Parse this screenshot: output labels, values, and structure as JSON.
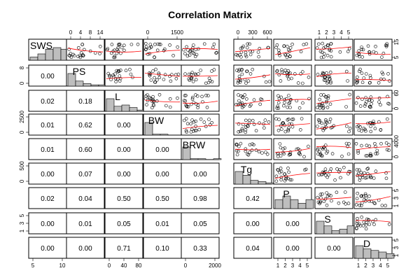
{
  "chart_data": {
    "type": "scatter",
    "title": "Correlation Matrix",
    "variables": [
      "SWS",
      "PS",
      "L",
      "BW",
      "BRW",
      "Tg",
      "P",
      "S",
      "D"
    ],
    "p_values": [
      {
        "row": "PS",
        "col": "SWS",
        "value": "0.00"
      },
      {
        "row": "L",
        "col": "SWS",
        "value": "0.02"
      },
      {
        "row": "L",
        "col": "PS",
        "value": "0.18"
      },
      {
        "row": "BW",
        "col": "SWS",
        "value": "0.01"
      },
      {
        "row": "BW",
        "col": "PS",
        "value": "0.62"
      },
      {
        "row": "BW",
        "col": "L",
        "value": "0.00"
      },
      {
        "row": "BRW",
        "col": "SWS",
        "value": "0.01"
      },
      {
        "row": "BRW",
        "col": "PS",
        "value": "0.60"
      },
      {
        "row": "BRW",
        "col": "L",
        "value": "0.00"
      },
      {
        "row": "BRW",
        "col": "BW",
        "value": "0.00"
      },
      {
        "row": "Tg",
        "col": "SWS",
        "value": "0.00"
      },
      {
        "row": "Tg",
        "col": "PS",
        "value": "0.07"
      },
      {
        "row": "Tg",
        "col": "L",
        "value": "0.00"
      },
      {
        "row": "Tg",
        "col": "BW",
        "value": "0.00"
      },
      {
        "row": "Tg",
        "col": "BRW",
        "value": "0.00"
      },
      {
        "row": "P",
        "col": "SWS",
        "value": "0.02"
      },
      {
        "row": "P",
        "col": "PS",
        "value": "0.04"
      },
      {
        "row": "P",
        "col": "L",
        "value": "0.50"
      },
      {
        "row": "P",
        "col": "BW",
        "value": "0.50"
      },
      {
        "row": "P",
        "col": "BRW",
        "value": "0.98"
      },
      {
        "row": "P",
        "col": "Tg",
        "value": "0.42"
      },
      {
        "row": "S",
        "col": "SWS",
        "value": "0.00"
      },
      {
        "row": "S",
        "col": "PS",
        "value": "0.01"
      },
      {
        "row": "S",
        "col": "L",
        "value": "0.05"
      },
      {
        "row": "S",
        "col": "BW",
        "value": "0.01"
      },
      {
        "row": "S",
        "col": "BRW",
        "value": "0.05"
      },
      {
        "row": "S",
        "col": "Tg",
        "value": "0.00"
      },
      {
        "row": "S",
        "col": "P",
        "value": "0.00"
      },
      {
        "row": "D",
        "col": "SWS",
        "value": "0.00"
      },
      {
        "row": "D",
        "col": "PS",
        "value": "0.00"
      },
      {
        "row": "D",
        "col": "L",
        "value": "0.71"
      },
      {
        "row": "D",
        "col": "BW",
        "value": "0.10"
      },
      {
        "row": "D",
        "col": "BRW",
        "value": "0.33"
      },
      {
        "row": "D",
        "col": "Tg",
        "value": "0.04"
      },
      {
        "row": "D",
        "col": "P",
        "value": "0.00"
      },
      {
        "row": "D",
        "col": "S",
        "value": "0.00"
      }
    ],
    "axis_ticks": {
      "top": [
        {
          "col": "PS",
          "labels": [
            "0",
            "4",
            "8",
            "14"
          ]
        },
        {
          "col": "BW",
          "labels": [
            "0",
            "1500"
          ]
        },
        {
          "col": "Tg",
          "labels": [
            "0",
            "300",
            "600"
          ]
        },
        {
          "col": "S",
          "labels": [
            "1",
            "2",
            "3",
            "4",
            "5"
          ]
        }
      ],
      "bottom": [
        {
          "col": "SWS",
          "labels": [
            "5",
            "10"
          ]
        },
        {
          "col": "L",
          "labels": [
            "0",
            "40",
            "80"
          ]
        },
        {
          "col": "BRW",
          "labels": [
            "0",
            "2000"
          ]
        },
        {
          "col": "P",
          "labels": [
            "1",
            "2",
            "3",
            "4",
            "5"
          ]
        },
        {
          "col": "D",
          "labels": [
            "1",
            "2",
            "3",
            "4",
            "5"
          ]
        }
      ],
      "left": [
        {
          "row": "PS",
          "labels": [
            "0",
            "8"
          ]
        },
        {
          "row": "BW",
          "labels": [
            "0",
            "2500"
          ]
        },
        {
          "row": "Tg",
          "labels": [
            "0",
            "500"
          ]
        },
        {
          "row": "S",
          "labels": [
            "1",
            "3",
            "5"
          ]
        }
      ],
      "right": [
        {
          "row": "SWS",
          "labels": [
            "5",
            "15"
          ]
        },
        {
          "row": "L",
          "labels": [
            "0",
            "60"
          ]
        },
        {
          "row": "BRW",
          "labels": [
            "0",
            "4000"
          ]
        },
        {
          "row": "P",
          "labels": [
            "1",
            "3",
            "5"
          ]
        },
        {
          "row": "D",
          "labels": [
            "1",
            "3",
            "5"
          ]
        }
      ]
    },
    "histograms": [
      {
        "var": "SWS",
        "counts": [
          2,
          4,
          7,
          8,
          7,
          5,
          3
        ]
      },
      {
        "var": "PS",
        "counts": [
          10,
          4,
          2,
          1,
          1
        ]
      },
      {
        "var": "L",
        "counts": [
          10,
          4,
          5,
          3,
          1,
          1
        ]
      },
      {
        "var": "BW",
        "counts": [
          14,
          1,
          1
        ]
      },
      {
        "var": "BRW",
        "counts": [
          14,
          1,
          1,
          0,
          1
        ]
      },
      {
        "var": "Tg",
        "counts": [
          10,
          7,
          3,
          2,
          1
        ]
      },
      {
        "var": "P",
        "counts": [
          5,
          7,
          5,
          3,
          5
        ]
      },
      {
        "var": "S",
        "counts": [
          8,
          5,
          2,
          3,
          5
        ]
      },
      {
        "var": "D",
        "counts": [
          8,
          6,
          5,
          4,
          3
        ]
      }
    ],
    "point_color": "#000000",
    "smooth_color": "#ff0000",
    "histogram_fill": "#bebebe"
  }
}
